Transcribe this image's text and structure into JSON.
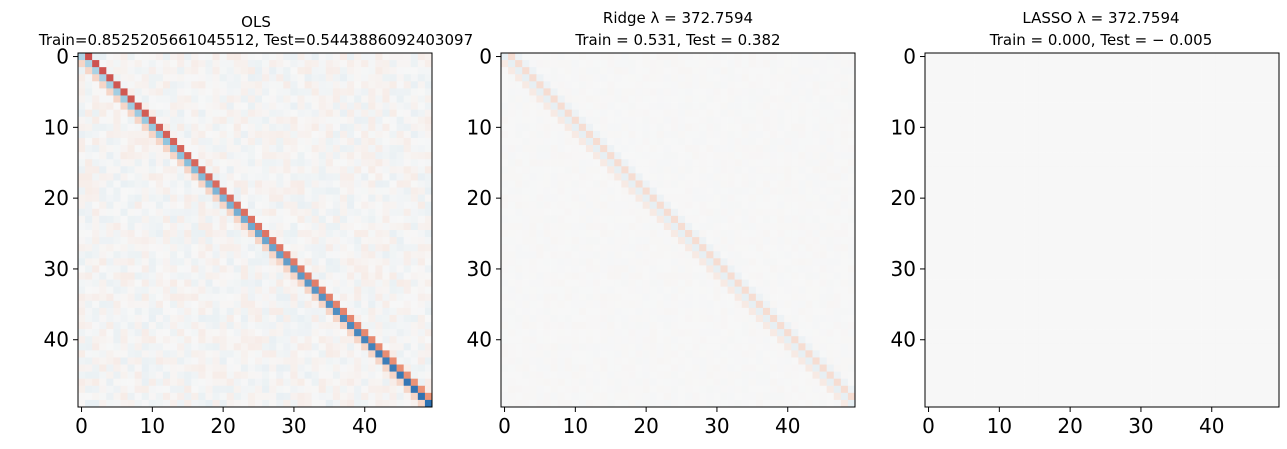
{
  "figure": {
    "colormap": "RdBu (diverging, red = positive, blue = negative)",
    "colors": {
      "positive": "#b2182b",
      "neutral": "#f7f7f7",
      "negative": "#2166ac"
    }
  },
  "chart_data": [
    {
      "type": "heatmap",
      "title": "OLS",
      "subtitle": "Train=0.8525205661045512, Test=0.5443886092403097",
      "size": 50,
      "x_ticks": [
        0,
        10,
        20,
        30,
        40
      ],
      "y_ticks": [
        0,
        10,
        20,
        30,
        40
      ],
      "xlim": [
        -0.5,
        49.5
      ],
      "ylim": [
        49.5,
        -0.5
      ],
      "color_range": [
        -1,
        1
      ],
      "pattern": {
        "diagonal_offset_minus1": 0.2,
        "diagonal_offset_0_start": -0.35,
        "diagonal_offset_0_end": -0.95,
        "diagonal_offset_plus1_start": 0.8,
        "diagonal_offset_plus1_end": 0.55,
        "off_diagonal_noise": 0.07
      }
    },
    {
      "type": "heatmap",
      "title": "Ridge λ = 372.7594",
      "subtitle": "Train = 0.531, Test = 0.382",
      "size": 50,
      "x_ticks": [
        0,
        10,
        20,
        30,
        40
      ],
      "y_ticks": [
        0,
        10,
        20,
        30,
        40
      ],
      "xlim": [
        -0.5,
        49.5
      ],
      "ylim": [
        49.5,
        -0.5
      ],
      "color_range": [
        -1,
        1
      ],
      "pattern": {
        "diagonal_offset_minus1": 0.08,
        "diagonal_offset_0": -0.08,
        "diagonal_offset_plus1": 0.16,
        "diagonal_offset_plus2": -0.05,
        "off_diagonal_noise": 0.012
      }
    },
    {
      "type": "heatmap",
      "title": "LASSO λ = 372.7594",
      "subtitle": "Train = 0.000, Test = − 0.005",
      "size": 50,
      "x_ticks": [
        0,
        10,
        20,
        30,
        40
      ],
      "y_ticks": [
        0,
        10,
        20,
        30,
        40
      ],
      "xlim": [
        -0.5,
        49.5
      ],
      "ylim": [
        49.5,
        -0.5
      ],
      "color_range": [
        -1,
        1
      ],
      "pattern": {
        "all_values": 0
      }
    }
  ]
}
